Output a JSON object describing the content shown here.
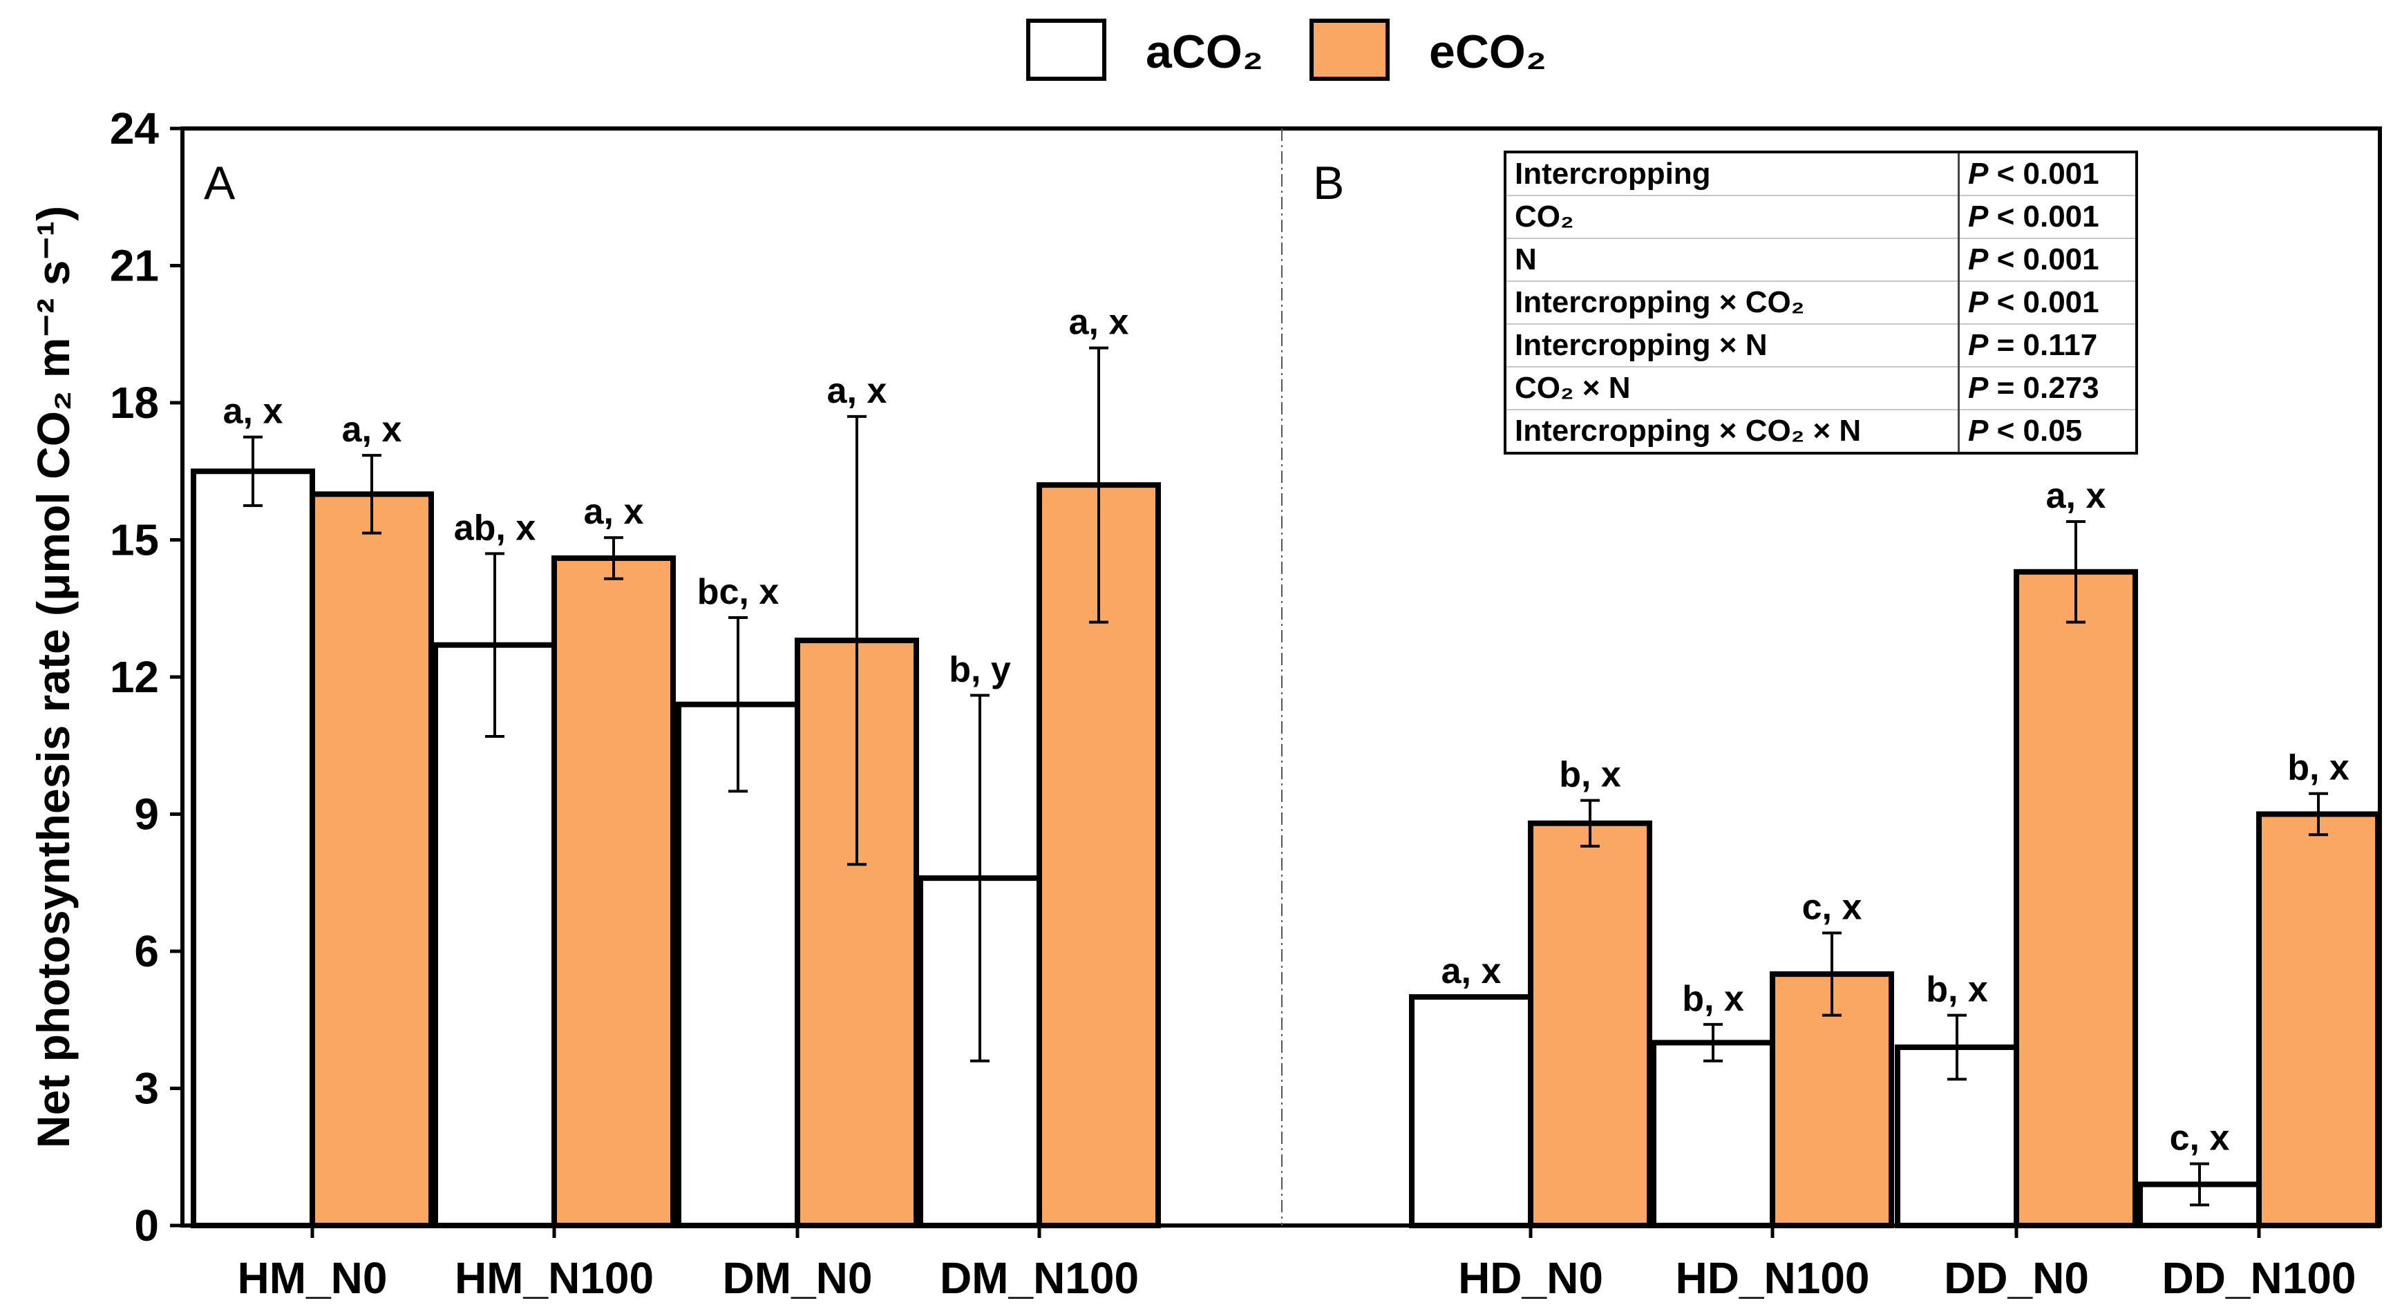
{
  "chart_data": {
    "type": "bar",
    "ylabel": "Net photosynthesis rate (μmol CO₂ m⁻² s⁻¹)",
    "ylim": [
      0,
      24
    ],
    "yticks": [
      0,
      3,
      6,
      9,
      12,
      15,
      18,
      21,
      24
    ],
    "legend": {
      "position": "top-center",
      "items": [
        {
          "name": "aCO₂",
          "color": "#ffffff"
        },
        {
          "name": "eCO₂",
          "color": "#f9a762"
        }
      ]
    },
    "panels": [
      {
        "label": "A",
        "categories": [
          "HM_N0",
          "HM_N100",
          "DM_N0",
          "DM_N100"
        ],
        "series": [
          {
            "name": "aCO₂",
            "values": [
              16.5,
              12.7,
              11.4,
              7.6
            ],
            "errors": [
              0.75,
              2.0,
              1.9,
              4.0
            ],
            "labels": [
              "a, x",
              "ab, x",
              "bc, x",
              "b, y"
            ]
          },
          {
            "name": "eCO₂",
            "values": [
              16.0,
              14.6,
              12.8,
              16.2
            ],
            "errors": [
              0.85,
              0.45,
              4.9,
              3.0
            ],
            "labels": [
              "a, x",
              "a, x",
              "a, x",
              "a, x"
            ]
          }
        ]
      },
      {
        "label": "B",
        "categories": [
          "HD_N0",
          "HD_N100",
          "DD_N0",
          "DD_N100"
        ],
        "series": [
          {
            "name": "aCO₂",
            "values": [
              5.0,
              4.0,
              3.9,
              0.9
            ],
            "errors": [
              0,
              0.4,
              0.7,
              0.45
            ],
            "labels": [
              "a, x",
              "b, x",
              "b, x",
              "c, x"
            ]
          },
          {
            "name": "eCO₂",
            "values": [
              8.8,
              5.5,
              14.3,
              9.0
            ],
            "errors": [
              0.5,
              0.9,
              1.1,
              0.45
            ],
            "labels": [
              "b, x",
              "c, x",
              "a, x",
              "b, x"
            ]
          }
        ]
      }
    ]
  },
  "stats_table": [
    {
      "term": "Intercropping",
      "p_sym": "P",
      "p_rest": " < 0.001"
    },
    {
      "term": "CO₂",
      "p_sym": "P",
      "p_rest": " < 0.001"
    },
    {
      "term": "N",
      "p_sym": "P",
      "p_rest": " < 0.001"
    },
    {
      "term": "Intercropping × CO₂",
      "p_sym": "P",
      "p_rest": " < 0.001"
    },
    {
      "term": "Intercropping × N",
      "p_sym": "P",
      "p_rest": " = 0.117"
    },
    {
      "term": "CO₂ × N",
      "p_sym": "P",
      "p_rest": " = 0.273"
    },
    {
      "term": "Intercropping × CO₂ × N",
      "p_sym": "P",
      "p_rest": " < 0.05"
    }
  ],
  "colors": {
    "aco2": "#ffffff",
    "eco2": "#f9a762",
    "stroke": "#000000",
    "divider": "#555555"
  }
}
